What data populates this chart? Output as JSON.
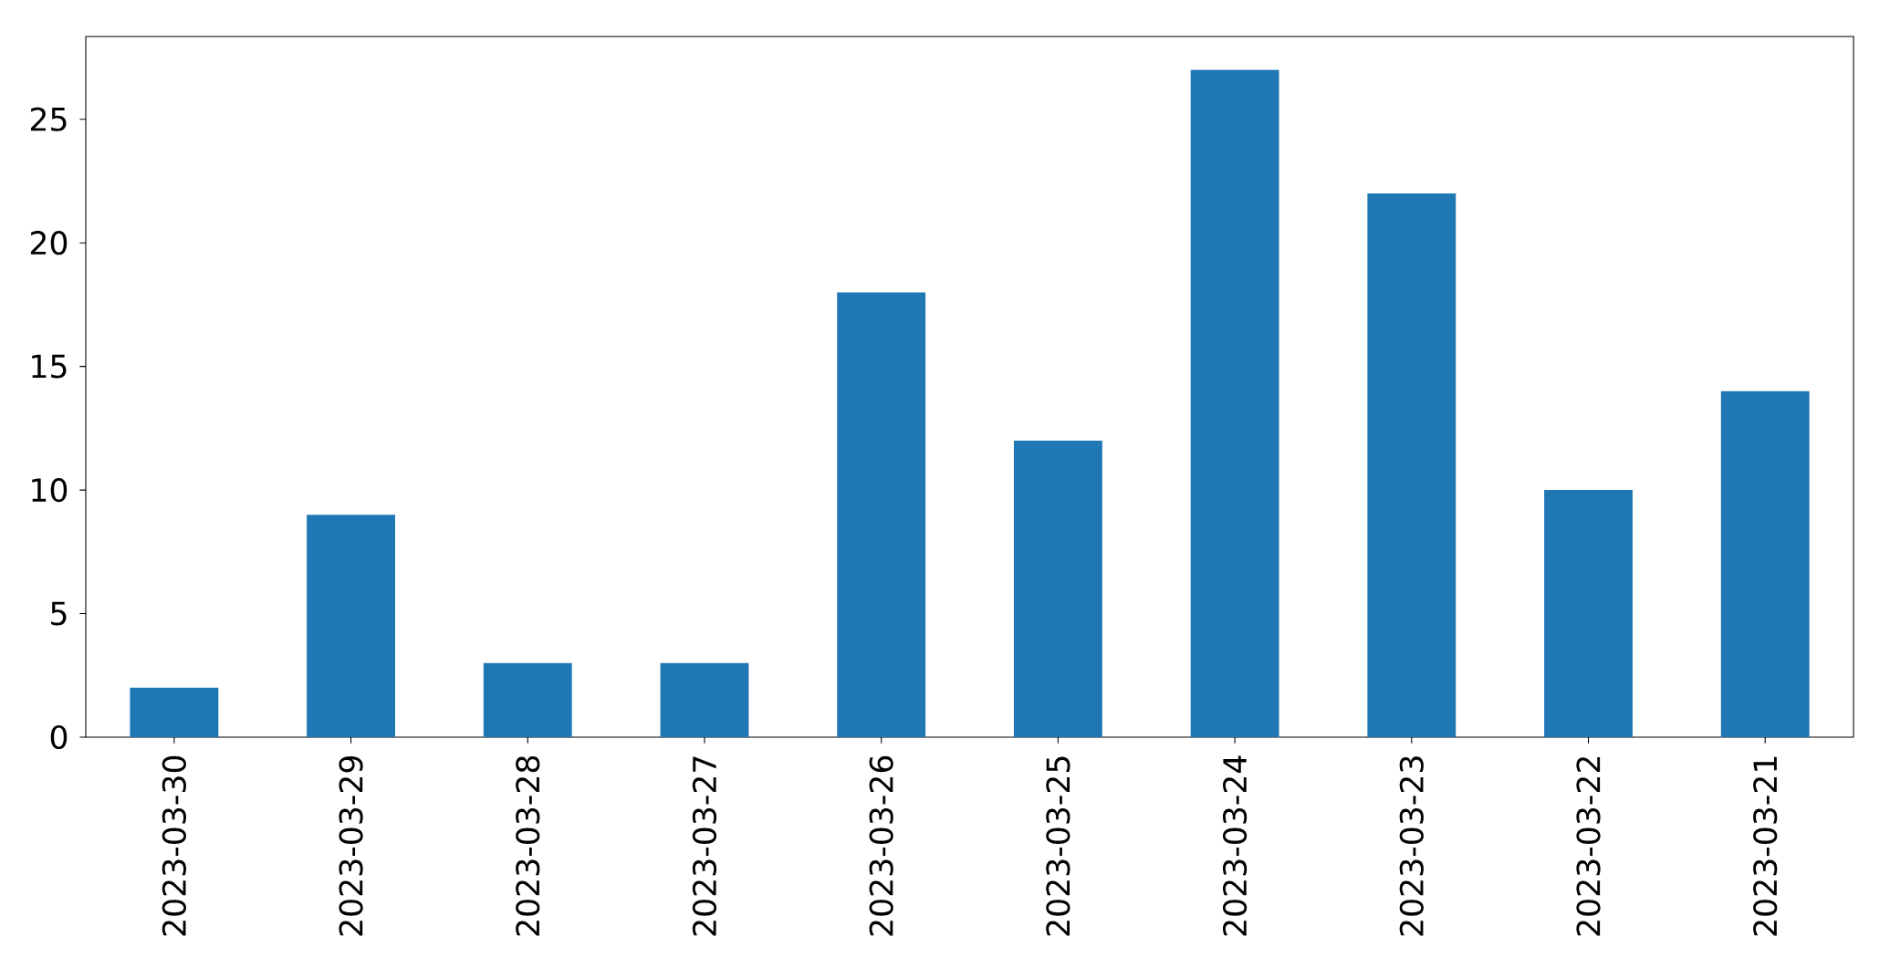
{
  "chart_data": {
    "type": "bar",
    "categories": [
      "2023-03-30",
      "2023-03-29",
      "2023-03-28",
      "2023-03-27",
      "2023-03-26",
      "2023-03-25",
      "2023-03-24",
      "2023-03-23",
      "2023-03-22",
      "2023-03-21"
    ],
    "values": [
      2,
      9,
      3,
      3,
      18,
      12,
      27,
      22,
      10,
      14
    ],
    "color": "#1f77b4",
    "ylim": [
      0,
      28.35
    ],
    "yticks": [
      0,
      5,
      10,
      15,
      20,
      25
    ]
  }
}
